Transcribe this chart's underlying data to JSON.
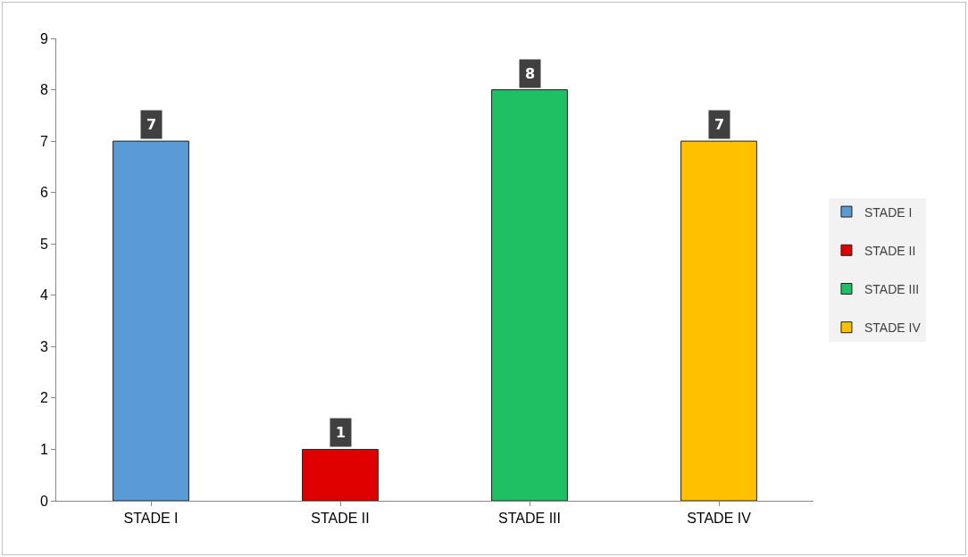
{
  "chart_data": {
    "type": "bar",
    "categories": [
      "STADE I",
      "STADE II",
      "STADE III",
      "STADE IV"
    ],
    "series": [
      {
        "name": "STADE I",
        "color": "#5b9bd5",
        "values": [
          7,
          null,
          null,
          null
        ]
      },
      {
        "name": "STADE II",
        "color": "#e00000",
        "values": [
          null,
          1,
          null,
          null
        ]
      },
      {
        "name": "STADE III",
        "color": "#1fbf64",
        "values": [
          null,
          null,
          8,
          null
        ]
      },
      {
        "name": "STADE IV",
        "color": "#ffc000",
        "values": [
          null,
          null,
          null,
          7
        ]
      }
    ],
    "ylim": [
      0,
      9
    ],
    "yticks": [
      0,
      1,
      2,
      3,
      4,
      5,
      6,
      7,
      8,
      9
    ],
    "grid": false,
    "legend": "right",
    "data_labels": true
  }
}
